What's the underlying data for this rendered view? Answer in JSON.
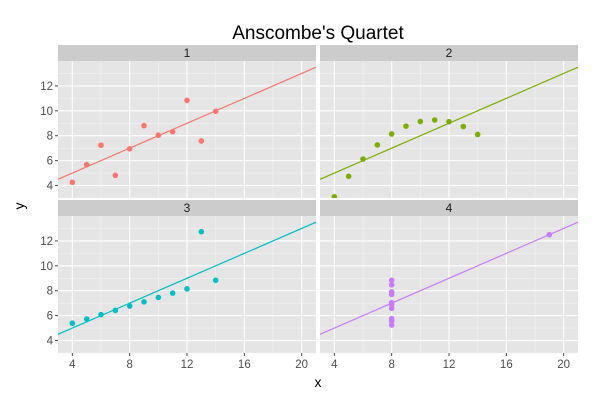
{
  "chart_data": {
    "type": "scatter",
    "title": "Anscombe's Quartet",
    "xlabel": "x",
    "ylabel": "y",
    "facet_layout": "2x2",
    "xlim": [
      3,
      21
    ],
    "ylim": [
      3,
      14
    ],
    "x_ticks": [
      4,
      8,
      12,
      16,
      20
    ],
    "y_ticks": [
      4,
      6,
      8,
      10,
      12
    ],
    "grid": true,
    "panel_background": "#e5e5e5",
    "grid_color": "#ffffff",
    "strip_background": "#cccccc",
    "panels": [
      {
        "label": "1",
        "color": "#f8766d",
        "points": [
          [
            10,
            8.04
          ],
          [
            8,
            6.95
          ],
          [
            13,
            7.58
          ],
          [
            9,
            8.81
          ],
          [
            11,
            8.33
          ],
          [
            14,
            9.96
          ],
          [
            6,
            7.24
          ],
          [
            4,
            4.26
          ],
          [
            12,
            10.84
          ],
          [
            7,
            4.82
          ],
          [
            5,
            5.68
          ]
        ],
        "fit": {
          "intercept": 3.0,
          "slope": 0.5
        }
      },
      {
        "label": "2",
        "color": "#7cae00",
        "points": [
          [
            10,
            9.14
          ],
          [
            8,
            8.14
          ],
          [
            13,
            8.74
          ],
          [
            9,
            8.77
          ],
          [
            11,
            9.26
          ],
          [
            14,
            8.1
          ],
          [
            6,
            6.13
          ],
          [
            4,
            3.1
          ],
          [
            12,
            9.13
          ],
          [
            7,
            7.26
          ],
          [
            5,
            4.74
          ]
        ],
        "fit": {
          "intercept": 3.0,
          "slope": 0.5
        }
      },
      {
        "label": "3",
        "color": "#00bfc4",
        "points": [
          [
            10,
            7.46
          ],
          [
            8,
            6.77
          ],
          [
            13,
            12.74
          ],
          [
            9,
            7.11
          ],
          [
            11,
            7.81
          ],
          [
            14,
            8.84
          ],
          [
            6,
            6.08
          ],
          [
            4,
            5.39
          ],
          [
            12,
            8.15
          ],
          [
            7,
            6.42
          ],
          [
            5,
            5.73
          ]
        ],
        "fit": {
          "intercept": 3.0,
          "slope": 0.5
        }
      },
      {
        "label": "4",
        "color": "#c77cff",
        "points": [
          [
            8,
            6.58
          ],
          [
            8,
            5.76
          ],
          [
            8,
            7.71
          ],
          [
            8,
            8.84
          ],
          [
            8,
            8.47
          ],
          [
            8,
            7.04
          ],
          [
            8,
            5.25
          ],
          [
            19,
            12.5
          ],
          [
            8,
            5.56
          ],
          [
            8,
            7.91
          ],
          [
            8,
            6.89
          ]
        ],
        "fit": {
          "intercept": 3.0,
          "slope": 0.5
        }
      }
    ]
  }
}
